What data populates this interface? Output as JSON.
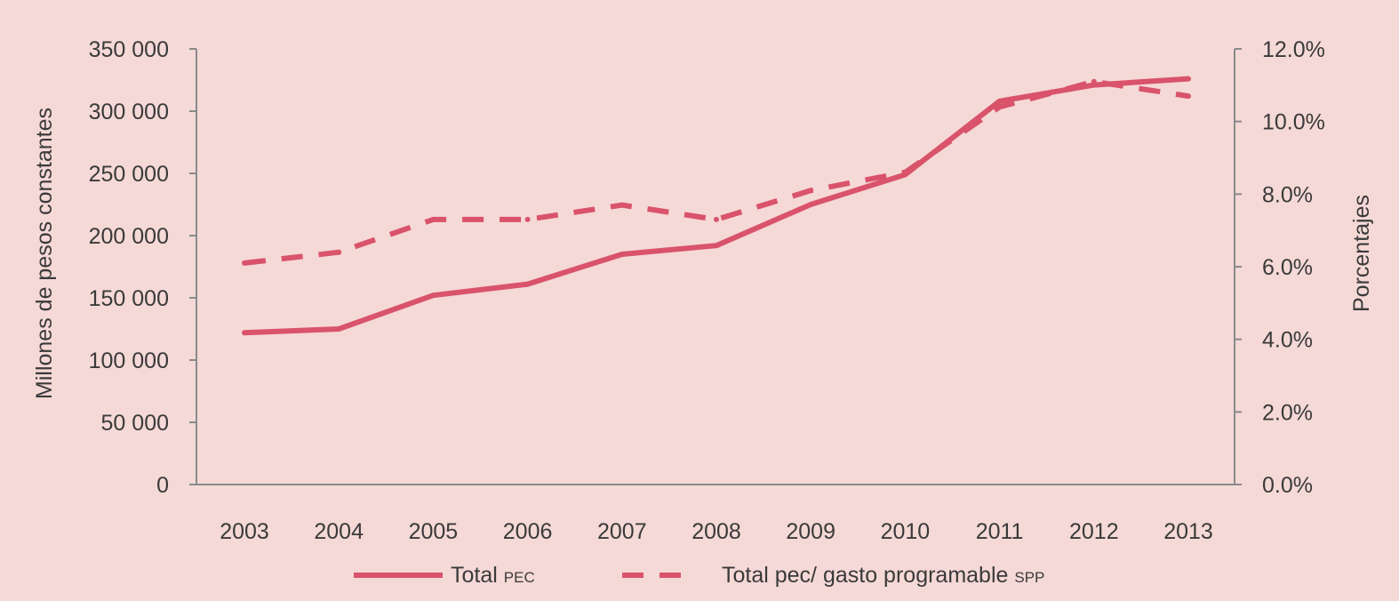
{
  "chart_data": {
    "type": "line",
    "categories": [
      "2003",
      "2004",
      "2005",
      "2006",
      "2007",
      "2008",
      "2009",
      "2010",
      "2011",
      "2012",
      "2013"
    ],
    "series": [
      {
        "name": "Total PEC",
        "legend_main": "Total ",
        "legend_suffix": "PEC",
        "axis": "left",
        "style": "solid",
        "values": [
          122000,
          125000,
          152000,
          161000,
          185000,
          192000,
          225000,
          249000,
          308000,
          321000,
          326000
        ]
      },
      {
        "name": "Total pec/ gasto programable SPP",
        "legend_main": "Total pec/ gasto programable ",
        "legend_suffix": "SPP",
        "axis": "right",
        "style": "dashed",
        "values": [
          6.1,
          6.4,
          7.3,
          7.3,
          7.7,
          7.3,
          8.1,
          8.6,
          10.4,
          11.1,
          10.7
        ]
      }
    ],
    "ylabel": "Millones de pesos constantes",
    "y2label": "Porcentajes",
    "ylim": [
      0,
      350000
    ],
    "y2lim": [
      0,
      12
    ],
    "yticks": [
      "0",
      "50 000",
      "100 000",
      "150 000",
      "200 000",
      "250 000",
      "300 000",
      "350 000"
    ],
    "y2ticks": [
      "0.0%",
      "2.0%",
      "4.0%",
      "6.0%",
      "8.0%",
      "10.0%",
      "12.0%"
    ],
    "grid": false,
    "legend_position": "bottom-center",
    "colors": {
      "line": "#d9536b",
      "axis": "#8a8a8a",
      "background": "#f5d9d6"
    }
  }
}
